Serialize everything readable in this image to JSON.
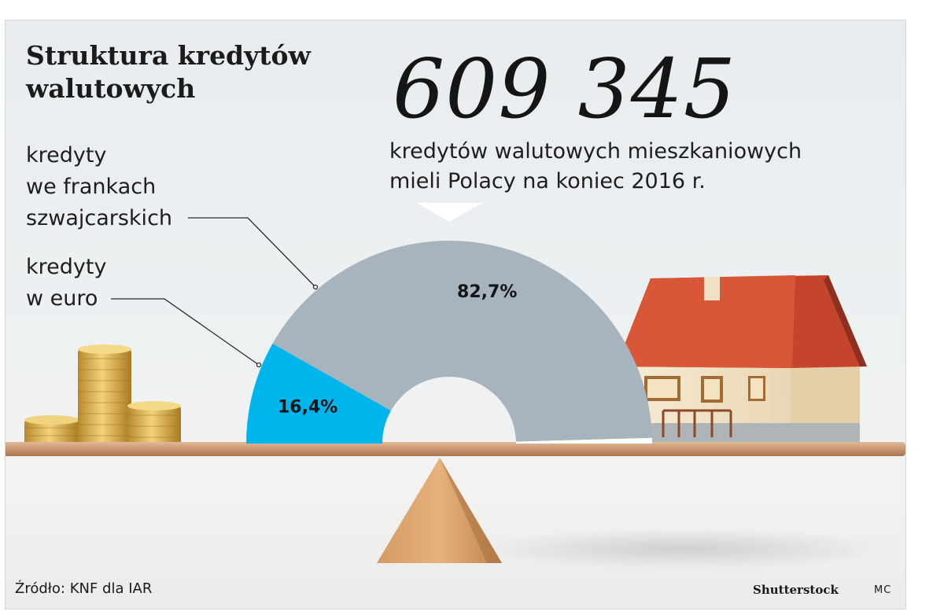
{
  "title": "Struktura kredytów\nwalutowych",
  "headline_number": "609 345",
  "subtitle": "kredytów walutowych mieszkaniowych\nmieli Polacy na koniec 2016 r.",
  "source": "Źródło: KNF dla IAR",
  "photo_credit": "Shutterstock",
  "author_initials": "MC",
  "colors": {
    "chf": "#a7b3bd",
    "eur": "#00b4ec",
    "other": "#ffffff"
  },
  "chart_data": {
    "type": "pie",
    "variant": "half-donut",
    "title": "Struktura kredytów walutowych",
    "slices": [
      {
        "label": "kredyty\nw euro",
        "value": 16.4,
        "display": "16,4%",
        "color": "#00b4ec"
      },
      {
        "label": "kredyty\nwe frankach\nszwajcarskich",
        "value": 82.7,
        "display": "82,7%",
        "color": "#a7b3bd"
      }
    ],
    "total": 100
  }
}
